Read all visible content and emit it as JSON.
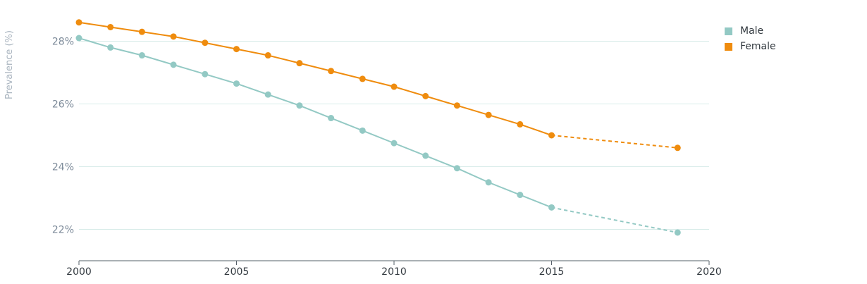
{
  "chart_data": {
    "type": "line",
    "ylabel": "Prevalence (%)",
    "xlabel": "",
    "xlim": [
      2000,
      2020
    ],
    "ylim": [
      21,
      29
    ],
    "xticks": [
      2000,
      2005,
      2010,
      2015,
      2020
    ],
    "yticks": [
      22,
      24,
      26,
      28
    ],
    "ytick_labels": [
      "22%",
      "24%",
      "26%",
      "28%"
    ],
    "grid": "horizontal",
    "legend_position": "top-right",
    "series": [
      {
        "name": "Male",
        "color": "#93c9c4",
        "x": [
          2000,
          2001,
          2002,
          2003,
          2004,
          2005,
          2006,
          2007,
          2008,
          2009,
          2010,
          2011,
          2012,
          2013,
          2014,
          2015,
          2019
        ],
        "values": [
          28.1,
          27.8,
          27.55,
          27.25,
          26.95,
          26.65,
          26.3,
          25.95,
          25.55,
          25.15,
          24.75,
          24.35,
          23.95,
          23.5,
          23.1,
          22.7,
          21.9
        ],
        "projected_from": 2015
      },
      {
        "name": "Female",
        "color": "#ef8c0e",
        "x": [
          2000,
          2001,
          2002,
          2003,
          2004,
          2005,
          2006,
          2007,
          2008,
          2009,
          2010,
          2011,
          2012,
          2013,
          2014,
          2015,
          2019
        ],
        "values": [
          28.6,
          28.45,
          28.3,
          28.15,
          27.95,
          27.75,
          27.55,
          27.3,
          27.05,
          26.8,
          26.55,
          26.25,
          25.95,
          25.65,
          25.35,
          25.0,
          24.6
        ],
        "projected_from": 2015
      }
    ]
  }
}
